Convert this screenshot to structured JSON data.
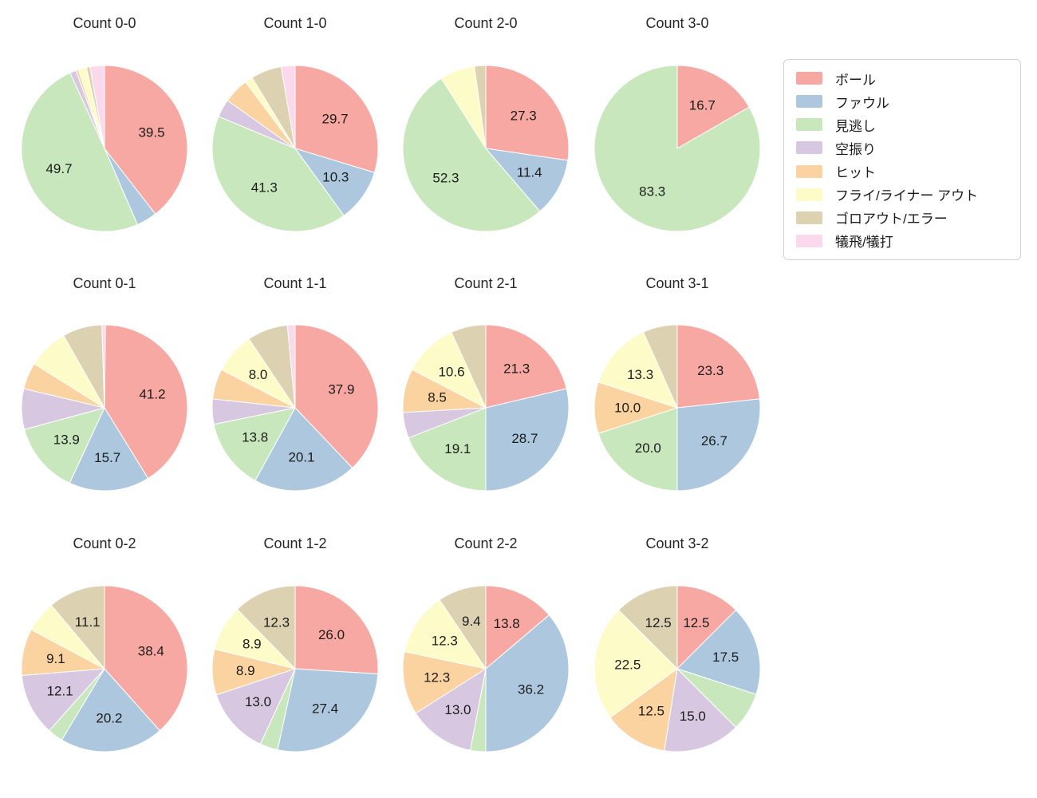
{
  "figure": {
    "background": "#ffffff"
  },
  "legend": {
    "position": "top-right",
    "items": [
      {
        "key": "ball",
        "label": "ボール",
        "color": "#f8a8a2"
      },
      {
        "key": "foul",
        "label": "ファウル",
        "color": "#adc8de"
      },
      {
        "key": "called-strike",
        "label": "見逃し",
        "color": "#c9e7bd"
      },
      {
        "key": "swinging-strike",
        "label": "空振り",
        "color": "#d8c7e0"
      },
      {
        "key": "hit",
        "label": "ヒット",
        "color": "#fbd3a0"
      },
      {
        "key": "fly-liner-out",
        "label": "フライ/ライナー アウト",
        "color": "#fdfcc8"
      },
      {
        "key": "ground-out-error",
        "label": "ゴロアウト/エラー",
        "color": "#dcd1b0"
      },
      {
        "key": "sacrifice",
        "label": "犠飛/犠打",
        "color": "#fbd9ec"
      }
    ]
  },
  "chart_data": [
    {
      "type": "pie",
      "title": "Count 0-0",
      "categories": [
        "ボール",
        "ファウル",
        "見逃し",
        "空振り",
        "ヒット",
        "フライ/ライナー アウト",
        "ゴロアウト/エラー",
        "犠飛/犠打"
      ],
      "values": [
        39.5,
        4.0,
        49.7,
        1.2,
        0.5,
        1.6,
        0.7,
        2.8
      ],
      "labels": [
        "39.5",
        null,
        "49.7",
        null,
        null,
        null,
        null,
        null
      ]
    },
    {
      "type": "pie",
      "title": "Count 1-0",
      "categories": [
        "ボール",
        "ファウル",
        "見逃し",
        "空振り",
        "ヒット",
        "フライ/ライナー アウト",
        "ゴロアウト/エラー",
        "犠飛/犠打"
      ],
      "values": [
        29.7,
        10.3,
        41.3,
        3.5,
        5.0,
        1.5,
        6.0,
        2.7
      ],
      "labels": [
        "29.7",
        "10.3",
        "41.3",
        null,
        null,
        null,
        null,
        null
      ]
    },
    {
      "type": "pie",
      "title": "Count 2-0",
      "categories": [
        "ボール",
        "ファウル",
        "見逃し",
        "空振り",
        "ヒット",
        "フライ/ライナー アウト",
        "ゴロアウト/エラー",
        "犠飛/犠打"
      ],
      "values": [
        27.3,
        11.4,
        52.3,
        0,
        0,
        6.8,
        2.2,
        0
      ],
      "labels": [
        "27.3",
        "11.4",
        "52.3",
        null,
        null,
        null,
        null,
        null
      ]
    },
    {
      "type": "pie",
      "title": "Count 3-0",
      "categories": [
        "ボール",
        "ファウル",
        "見逃し",
        "空振り",
        "ヒット",
        "フライ/ライナー アウト",
        "ゴロアウト/エラー",
        "犠飛/犠打"
      ],
      "values": [
        16.7,
        0,
        83.3,
        0,
        0,
        0,
        0,
        0
      ],
      "labels": [
        "16.7",
        null,
        "83.3",
        null,
        null,
        null,
        null,
        null
      ]
    },
    {
      "type": "pie",
      "title": "Count 0-1",
      "categories": [
        "ボール",
        "ファウル",
        "見逃し",
        "空振り",
        "ヒット",
        "フライ/ライナー アウト",
        "ゴロアウト/エラー",
        "犠飛/犠打"
      ],
      "values": [
        41.2,
        15.7,
        13.9,
        7.9,
        5.2,
        7.9,
        7.7,
        0.7
      ],
      "labels": [
        "41.2",
        "15.7",
        "13.9",
        null,
        null,
        null,
        null,
        null
      ]
    },
    {
      "type": "pie",
      "title": "Count 1-1",
      "categories": [
        "ボール",
        "ファウル",
        "見逃し",
        "空振り",
        "ヒット",
        "フライ/ライナー アウト",
        "ゴロアウト/エラー",
        "犠飛/犠打"
      ],
      "values": [
        37.9,
        20.1,
        13.8,
        4.9,
        5.9,
        8.0,
        7.9,
        1.5
      ],
      "labels": [
        "37.9",
        "20.1",
        "13.8",
        null,
        null,
        "8.0",
        null,
        null
      ]
    },
    {
      "type": "pie",
      "title": "Count 2-1",
      "categories": [
        "ボール",
        "ファウル",
        "見逃し",
        "空振り",
        "ヒット",
        "フライ/ライナー アウト",
        "ゴロアウト/エラー",
        "犠飛/犠打"
      ],
      "values": [
        21.3,
        28.7,
        19.1,
        5.0,
        8.5,
        10.6,
        6.8,
        0
      ],
      "labels": [
        "21.3",
        "28.7",
        "19.1",
        null,
        "8.5",
        "10.6",
        null,
        null
      ]
    },
    {
      "type": "pie",
      "title": "Count 3-1",
      "categories": [
        "ボール",
        "ファウル",
        "見逃し",
        "空振り",
        "ヒット",
        "フライ/ライナー アウト",
        "ゴロアウト/エラー",
        "犠飛/犠打"
      ],
      "values": [
        23.3,
        26.7,
        20.0,
        0,
        10.0,
        13.3,
        6.7,
        0
      ],
      "labels": [
        "23.3",
        "26.7",
        "20.0",
        null,
        "10.0",
        "13.3",
        null,
        null
      ]
    },
    {
      "type": "pie",
      "title": "Count 0-2",
      "categories": [
        "ボール",
        "ファウル",
        "見逃し",
        "空振り",
        "ヒット",
        "フライ/ライナー アウト",
        "ゴロアウト/エラー",
        "犠飛/犠打"
      ],
      "values": [
        38.4,
        20.2,
        3.0,
        12.1,
        9.1,
        6.1,
        11.1,
        0
      ],
      "labels": [
        "38.4",
        "20.2",
        null,
        "12.1",
        "9.1",
        null,
        "11.1",
        null
      ]
    },
    {
      "type": "pie",
      "title": "Count 1-2",
      "categories": [
        "ボール",
        "ファウル",
        "見逃し",
        "空振り",
        "ヒット",
        "フライ/ライナー アウト",
        "ゴロアウト/エラー",
        "犠飛/犠打"
      ],
      "values": [
        26.0,
        27.4,
        3.5,
        13.0,
        8.9,
        8.9,
        12.3,
        0
      ],
      "labels": [
        "26.0",
        "27.4",
        null,
        "13.0",
        "8.9",
        "8.9",
        "12.3",
        null
      ]
    },
    {
      "type": "pie",
      "title": "Count 2-2",
      "categories": [
        "ボール",
        "ファウル",
        "見逃し",
        "空振り",
        "ヒット",
        "フライ/ライナー アウト",
        "ゴロアウト/エラー",
        "犠飛/犠打"
      ],
      "values": [
        13.8,
        36.2,
        3.0,
        13.0,
        12.3,
        12.3,
        9.4,
        0
      ],
      "labels": [
        "13.8",
        "36.2",
        null,
        "13.0",
        "12.3",
        "12.3",
        "9.4",
        null
      ]
    },
    {
      "type": "pie",
      "title": "Count 3-2",
      "categories": [
        "ボール",
        "ファウル",
        "見逃し",
        "空振り",
        "ヒット",
        "フライ/ライナー アウト",
        "ゴロアウト/エラー",
        "犠飛/犠打"
      ],
      "values": [
        12.5,
        17.5,
        7.5,
        15.0,
        12.5,
        22.5,
        12.5,
        0
      ],
      "labels": [
        "12.5",
        "17.5",
        null,
        "15.0",
        "12.5",
        "22.5",
        "12.5",
        null
      ]
    }
  ]
}
